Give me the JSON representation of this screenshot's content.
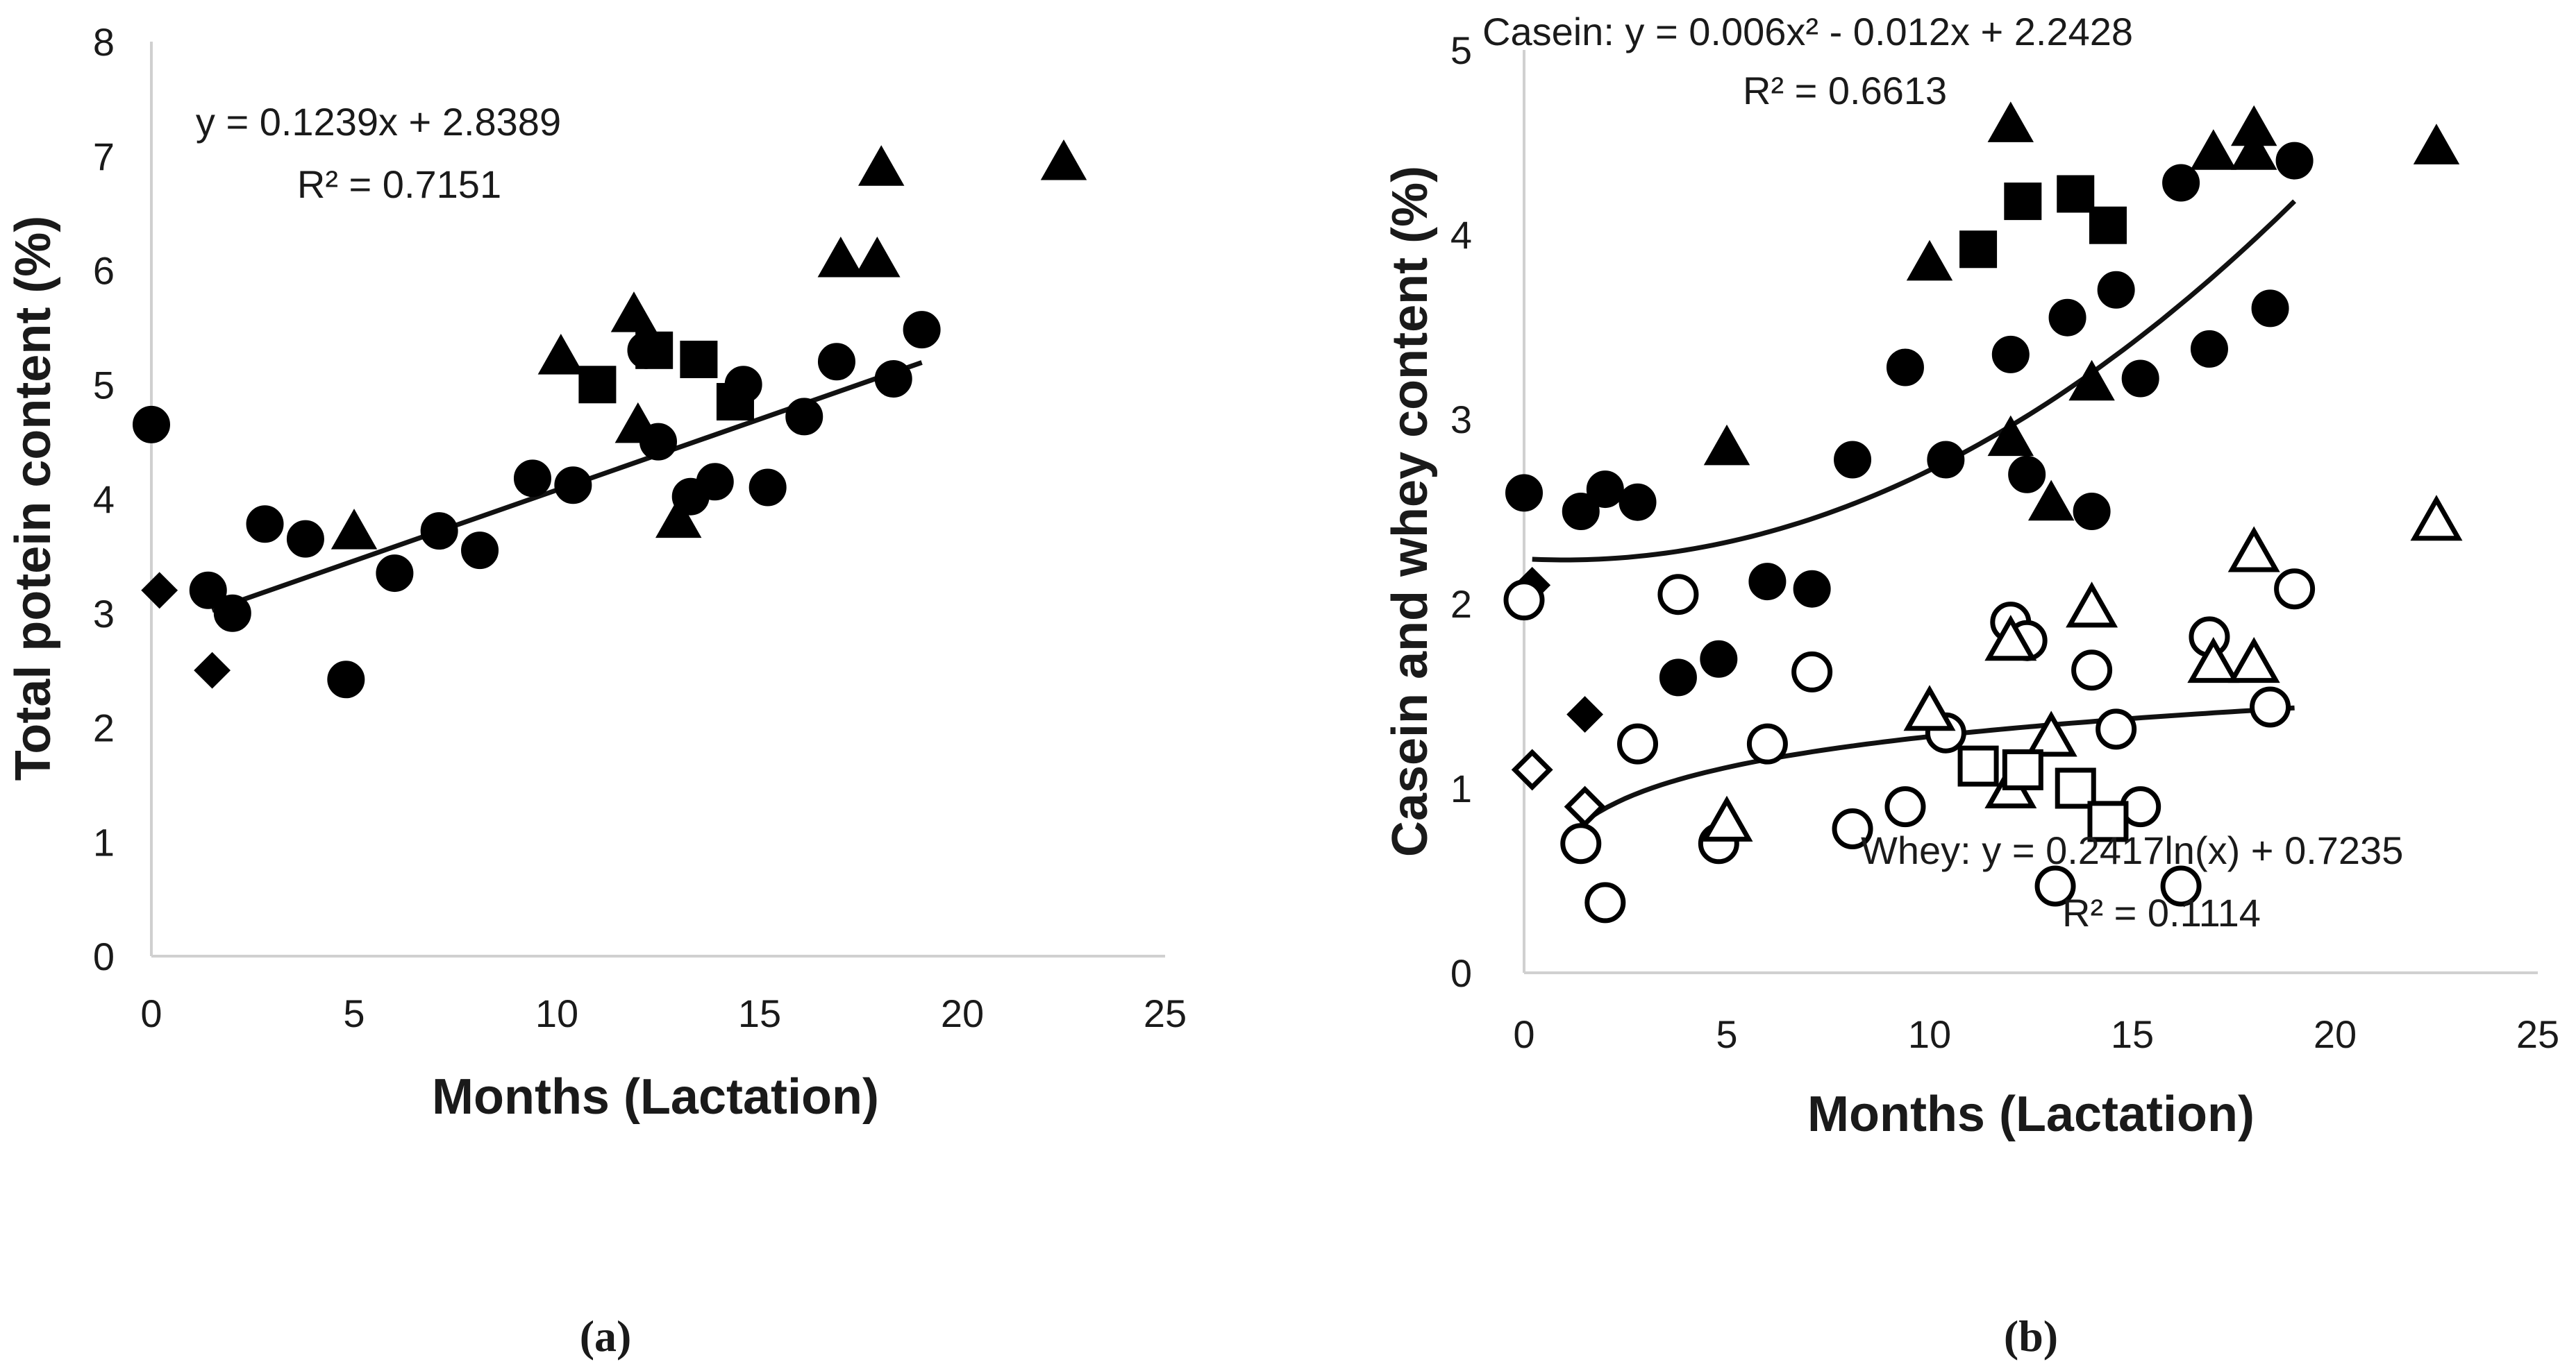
{
  "chart_data": [
    {
      "panel": "a",
      "panel_label": "(a)",
      "type": "scatter",
      "xlabel": "Months (Lactation)",
      "ylabel": "Total potein content (%)",
      "xlim": [
        0,
        25
      ],
      "ylim": [
        0,
        8
      ],
      "x_ticks": [
        "0",
        "5",
        "10",
        "15",
        "20",
        "25"
      ],
      "y_ticks": [
        "0",
        "1",
        "2",
        "3",
        "4",
        "5",
        "6",
        "7",
        "8"
      ],
      "trendline": {
        "type": "linear",
        "equation": "y = 0.1239x + 2.8389",
        "r2_label": "R² = 0.7151",
        "slope": 0.1239,
        "intercept": 2.8389,
        "x_range": [
          1.5,
          19
        ]
      },
      "series": [
        {
          "name": "circle",
          "marker": "circle",
          "filled": true,
          "points": [
            [
              0,
              4.65
            ],
            [
              1.4,
              3.2
            ],
            [
              2,
              3.0
            ],
            [
              2.8,
              3.78
            ],
            [
              3.8,
              3.65
            ],
            [
              4.8,
              2.42
            ],
            [
              6,
              3.35
            ],
            [
              7.1,
              3.72
            ],
            [
              8.1,
              3.55
            ],
            [
              9.4,
              4.18
            ],
            [
              10.4,
              4.12
            ],
            [
              12.2,
              5.3
            ],
            [
              12.5,
              4.5
            ],
            [
              13.3,
              4.02
            ],
            [
              13.9,
              4.15
            ],
            [
              14.6,
              5.0
            ],
            [
              15.2,
              4.1
            ],
            [
              16.1,
              4.72
            ],
            [
              16.9,
              5.2
            ],
            [
              18.3,
              5.05
            ],
            [
              19,
              5.48
            ]
          ]
        },
        {
          "name": "triangle",
          "marker": "triangle",
          "filled": true,
          "points": [
            [
              5,
              3.72
            ],
            [
              10.1,
              5.25
            ],
            [
              11.9,
              5.62
            ],
            [
              12,
              4.65
            ],
            [
              13,
              3.82
            ],
            [
              17,
              6.1
            ],
            [
              17.9,
              6.1
            ],
            [
              18,
              6.9
            ],
            [
              22.5,
              6.95
            ]
          ]
        },
        {
          "name": "square",
          "marker": "square",
          "filled": true,
          "points": [
            [
              11,
              5.0
            ],
            [
              12.4,
              5.3
            ],
            [
              13.5,
              5.22
            ],
            [
              14.4,
              4.85
            ]
          ]
        },
        {
          "name": "diamond",
          "marker": "diamond",
          "filled": true,
          "points": [
            [
              0.2,
              3.2
            ],
            [
              1.5,
              2.5
            ]
          ]
        }
      ]
    },
    {
      "panel": "b",
      "panel_label": "(b)",
      "type": "scatter",
      "xlabel": "Months (Lactation)",
      "ylabel": "Casein and whey content (%)",
      "xlim": [
        0,
        25
      ],
      "ylim": [
        0,
        5
      ],
      "x_ticks": [
        "0",
        "5",
        "10",
        "15",
        "20",
        "25"
      ],
      "y_ticks": [
        "0",
        "1",
        "2",
        "3",
        "4",
        "5"
      ],
      "trendlines": [
        {
          "name": "Casein",
          "type": "polynomial",
          "equation": "Casein: y = 0.006x² - 0.012x + 2.2428",
          "r2_label": "R² = 0.6613",
          "a": 0.006,
          "b": -0.012,
          "c": 2.2428,
          "x_range": [
            0.2,
            19
          ]
        },
        {
          "name": "Whey",
          "type": "logarithmic",
          "equation": "Whey: y = 0.2417ln(x) + 0.7235",
          "r2_label": "R² = 0.1114",
          "a": 0.2417,
          "b": 0.7235,
          "x_range": [
            1.4,
            19
          ]
        }
      ],
      "series": [
        {
          "name": "Casein circle",
          "marker": "circle",
          "filled": true,
          "points": [
            [
              0,
              2.6
            ],
            [
              1.4,
              2.5
            ],
            [
              2,
              2.62
            ],
            [
              2.8,
              2.55
            ],
            [
              3.8,
              1.6
            ],
            [
              4.8,
              1.7
            ],
            [
              6,
              2.12
            ],
            [
              7.1,
              2.08
            ],
            [
              8.1,
              2.78
            ],
            [
              9.4,
              3.28
            ],
            [
              10.4,
              2.78
            ],
            [
              12,
              3.35
            ],
            [
              12.4,
              2.7
            ],
            [
              13.4,
              3.55
            ],
            [
              14,
              2.5
            ],
            [
              14.6,
              3.7
            ],
            [
              15.2,
              3.22
            ],
            [
              16.2,
              4.28
            ],
            [
              16.9,
              3.38
            ],
            [
              18.4,
              3.6
            ],
            [
              19,
              4.4
            ]
          ]
        },
        {
          "name": "Casein triangle",
          "marker": "triangle",
          "filled": true,
          "points": [
            [
              5,
              2.85
            ],
            [
              10,
              3.85
            ],
            [
              12,
              4.6
            ],
            [
              12,
              2.9
            ],
            [
              13,
              2.55
            ],
            [
              14,
              3.2
            ],
            [
              17,
              4.45
            ],
            [
              18,
              4.58
            ],
            [
              18,
              4.45
            ],
            [
              22.5,
              4.48
            ]
          ]
        },
        {
          "name": "Casein square",
          "marker": "square",
          "filled": true,
          "points": [
            [
              11.2,
              3.92
            ],
            [
              12.3,
              4.18
            ],
            [
              13.6,
              4.22
            ],
            [
              14.4,
              4.05
            ]
          ]
        },
        {
          "name": "Casein diamond",
          "marker": "diamond",
          "filled": true,
          "points": [
            [
              0.2,
              2.1
            ],
            [
              1.5,
              1.4
            ]
          ]
        },
        {
          "name": "Whey circle",
          "marker": "circle",
          "filled": false,
          "points": [
            [
              0,
              2.02
            ],
            [
              1.4,
              0.7
            ],
            [
              2,
              0.38
            ],
            [
              2.8,
              1.24
            ],
            [
              3.8,
              2.05
            ],
            [
              4.8,
              0.7
            ],
            [
              6,
              1.24
            ],
            [
              7.1,
              1.63
            ],
            [
              8.1,
              0.78
            ],
            [
              9.4,
              0.9
            ],
            [
              10.4,
              1.3
            ],
            [
              12,
              1.9
            ],
            [
              12.4,
              1.8
            ],
            [
              13.1,
              0.47
            ],
            [
              14,
              1.64
            ],
            [
              14.6,
              1.32
            ],
            [
              15.2,
              0.9
            ],
            [
              16.2,
              0.47
            ],
            [
              16.9,
              1.82
            ],
            [
              18.4,
              1.44
            ],
            [
              19,
              2.08
            ]
          ]
        },
        {
          "name": "Whey triangle",
          "marker": "triangle",
          "filled": false,
          "points": [
            [
              5,
              0.82
            ],
            [
              10,
              1.42
            ],
            [
              12,
              1.8
            ],
            [
              12,
              1.0
            ],
            [
              13,
              1.28
            ],
            [
              14,
              1.98
            ],
            [
              17,
              1.68
            ],
            [
              18,
              2.28
            ],
            [
              18,
              1.68
            ],
            [
              22.5,
              2.45
            ]
          ]
        },
        {
          "name": "Whey square",
          "marker": "square",
          "filled": false,
          "points": [
            [
              11.2,
              1.12
            ],
            [
              12.3,
              1.1
            ],
            [
              13.6,
              1.0
            ],
            [
              14.4,
              0.82
            ]
          ]
        },
        {
          "name": "Whey diamond",
          "marker": "diamond",
          "filled": false,
          "points": [
            [
              0.2,
              1.1
            ],
            [
              1.5,
              0.9
            ]
          ]
        }
      ]
    }
  ]
}
